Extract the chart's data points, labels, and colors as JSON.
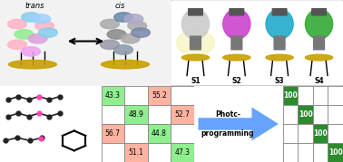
{
  "left_table": {
    "cells": [
      [
        43.3,
        null,
        55.2,
        null
      ],
      [
        null,
        48.9,
        null,
        52.7
      ],
      [
        56.7,
        null,
        44.8,
        null
      ],
      [
        null,
        51.1,
        null,
        47.3
      ]
    ],
    "cell_colors": [
      [
        "#90ee90",
        "#ffffff",
        "#ffb3a0",
        "#ffffff"
      ],
      [
        "#ffffff",
        "#90ee90",
        "#ffffff",
        "#ffb3a0"
      ],
      [
        "#ffb3a0",
        "#ffffff",
        "#90ee90",
        "#ffffff"
      ],
      [
        "#ffffff",
        "#ffb3a0",
        "#ffffff",
        "#90ee90"
      ]
    ]
  },
  "right_table": {
    "cells": [
      [
        100,
        null,
        null,
        null
      ],
      [
        null,
        100,
        null,
        null
      ],
      [
        null,
        null,
        100,
        null
      ],
      [
        null,
        null,
        null,
        100
      ]
    ],
    "cell_colors": [
      [
        "#2d8a2d",
        "#ffffff",
        "#ffffff",
        "#ffffff"
      ],
      [
        "#ffffff",
        "#2d8a2d",
        "#ffffff",
        "#ffffff"
      ],
      [
        "#ffffff",
        "#ffffff",
        "#2d8a2d",
        "#ffffff"
      ],
      [
        "#ffffff",
        "#ffffff",
        "#ffffff",
        "#2d8a2d"
      ]
    ]
  },
  "arrow_text_line1": "Photc-",
  "arrow_text_line2": "programming",
  "arrow_color": "#5599ff",
  "background": "#ffffff",
  "top_left_bg": "#f0f0f0",
  "top_right_bg": "#ffffff",
  "sensors": [
    {
      "label": "S1",
      "color": "#cccccc",
      "top_color": "#dddddd"
    },
    {
      "label": "S2",
      "color": "#cc44cc",
      "top_color": "#dd66dd"
    },
    {
      "label": "S3",
      "color": "#22aacc",
      "top_color": "#44ccdd"
    },
    {
      "label": "S4",
      "color": "#33aa33",
      "top_color": "#55cc55"
    }
  ]
}
